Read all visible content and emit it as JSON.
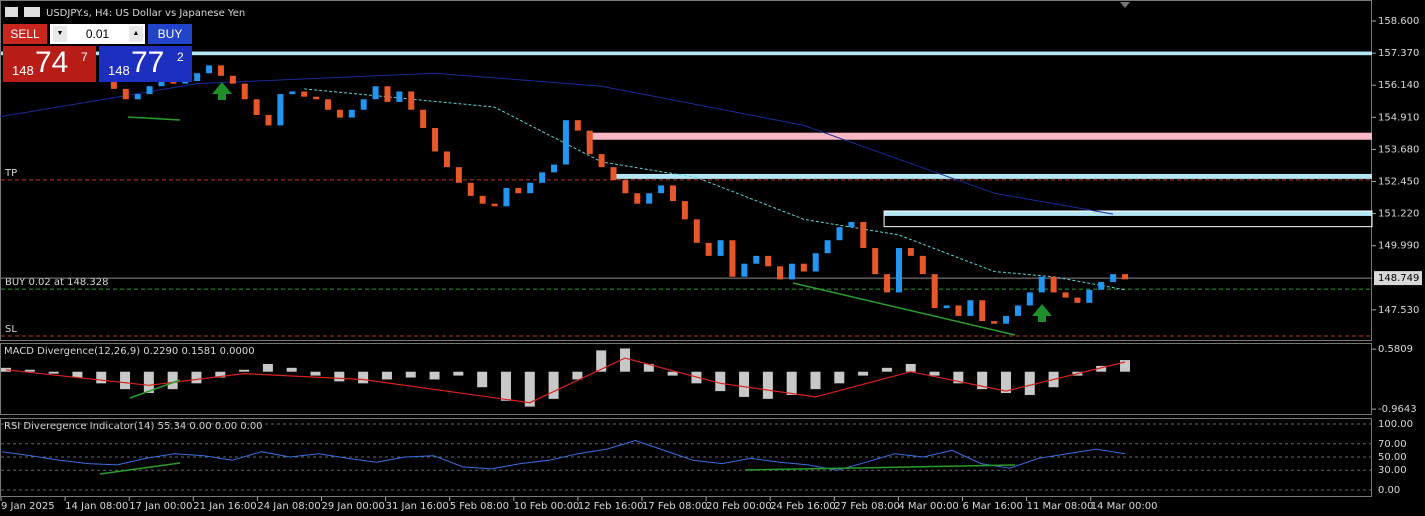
{
  "header": {
    "title": "USDJPY.s, H4:  US Dollar vs Japanese Yen"
  },
  "trade_panel": {
    "sell_label": "SELL",
    "buy_label": "BUY",
    "lot": "0.01",
    "sell_price_head": "148",
    "sell_price_main": "74",
    "sell_price_sup": "7",
    "buy_price_head": "148",
    "buy_price_main": "77",
    "buy_price_sup": "2"
  },
  "main": {
    "ylim": [
      146.338,
      159.405
    ],
    "yticks": [
      {
        "value": 158.6,
        "label": "158.600"
      },
      {
        "value": 157.37,
        "label": "157.370"
      },
      {
        "value": 156.14,
        "label": "156.140"
      },
      {
        "value": 154.91,
        "label": "154.910"
      },
      {
        "value": 153.68,
        "label": "153.680"
      },
      {
        "value": 152.45,
        "label": "152.450"
      },
      {
        "value": 151.22,
        "label": "151.220"
      },
      {
        "value": 149.99,
        "label": "149.990"
      },
      {
        "value": 147.53,
        "label": "147.530"
      }
    ],
    "current_price": {
      "value": 148.749,
      "label": "148.749"
    },
    "up_color": "#2196f3",
    "down_color": "#e8572a",
    "closes": [
      156.3,
      156.0,
      155.6,
      155.8,
      156.1,
      156.4,
      156.2,
      156.3,
      156.6,
      156.9,
      156.5,
      156.2,
      155.6,
      155.0,
      154.6,
      155.8,
      155.9,
      155.7,
      155.6,
      155.2,
      154.9,
      155.2,
      155.6,
      156.1,
      155.5,
      155.9,
      155.2,
      154.5,
      153.6,
      153.0,
      152.4,
      151.9,
      151.6,
      151.5,
      152.2,
      152.0,
      152.4,
      152.8,
      153.1,
      154.8,
      154.4,
      153.5,
      153.0,
      152.5,
      152.0,
      151.6,
      152.0,
      152.3,
      151.7,
      151.0,
      150.1,
      149.6,
      150.2,
      148.8,
      149.3,
      149.6,
      149.2,
      148.7,
      149.3,
      149.0,
      149.7,
      150.2,
      150.7,
      150.9,
      149.9,
      148.9,
      148.2,
      149.9,
      149.6,
      148.9,
      147.6,
      147.7,
      147.3,
      147.9,
      147.1,
      147.0,
      147.3,
      147.7,
      148.2,
      148.8,
      148.2,
      148.0,
      147.8,
      148.3,
      148.6,
      148.9,
      148.7
    ],
    "ma": [
      {
        "color": "#1a2a9a",
        "dashed": false,
        "x": [
          -9,
          8,
          28,
          42,
          59,
          75,
          85
        ],
        "values": [
          154.9,
          156.2,
          156.6,
          156.1,
          154.6,
          152.0,
          151.2
        ]
      },
      {
        "color": "#5fd3d3",
        "dashed": true,
        "x": [
          17,
          33,
          42,
          50,
          59,
          67,
          75,
          80,
          86
        ],
        "values": [
          156.0,
          155.3,
          153.2,
          152.6,
          151.0,
          150.4,
          149.0,
          148.8,
          148.3
        ]
      }
    ],
    "zones": [
      {
        "top": 157.43,
        "bottom": 157.29,
        "color": "#b3e5f2"
      },
      {
        "top": 154.32,
        "bottom": 154.05,
        "color": "#f9b9c4",
        "start": 41
      },
      {
        "top": 152.74,
        "bottom": 152.55,
        "color": "#b3e5f2",
        "start": 43
      },
      {
        "top": 151.32,
        "bottom": 151.13,
        "color": "#b3e5f2",
        "start": 66
      },
      {
        "top": 151.32,
        "bottom": 150.72,
        "color": "none",
        "border": "#ffffff",
        "start": 66
      }
    ],
    "levels": [
      {
        "label": "TP",
        "value": 152.51,
        "color": "#c0392b"
      },
      {
        "label": "BUY 0.02 at 148.328",
        "value": 148.328,
        "color": "#2e9e2e"
      },
      {
        "label": "SL",
        "value": 146.53,
        "color": "#c0392b"
      }
    ],
    "xticks": [
      "9 Jan 2025",
      "14 Jan 08:00",
      "17 Jan 00:00",
      "21 Jan 16:00",
      "24 Jan 08:00",
      "29 Jan 00:00",
      "31 Jan 16:00",
      "5 Feb 08:00",
      "10 Feb 00:00",
      "12 Feb 16:00",
      "17 Feb 08:00",
      "20 Feb 00:00",
      "24 Feb 16:00",
      "27 Feb 08:00",
      "4 Mar 00:00",
      "6 Mar 16:00",
      "11 Mar 08:00",
      "14 Mar 00:00"
    ]
  },
  "macd": {
    "title": "MACD Divergence(12,26,9) 0.2290 0.1581 0.0000",
    "ylim": [
      -1.116,
      0.74
    ],
    "yticks": [
      0.5809,
      -0.9643
    ],
    "hist_color": "#c8c8c8",
    "signal_color": "#d6221e",
    "histogram": [
      0.1,
      0.05,
      -0.05,
      -0.15,
      -0.3,
      -0.45,
      -0.55,
      -0.45,
      -0.3,
      -0.15,
      0.05,
      0.2,
      0.1,
      -0.1,
      -0.25,
      -0.3,
      -0.2,
      -0.15,
      -0.2,
      -0.1,
      -0.4,
      -0.75,
      -0.9,
      -0.7,
      -0.2,
      0.55,
      0.6,
      0.2,
      -0.1,
      -0.3,
      -0.5,
      -0.65,
      -0.7,
      -0.6,
      -0.45,
      -0.3,
      -0.1,
      0.1,
      0.2,
      -0.1,
      -0.3,
      -0.45,
      -0.55,
      -0.6,
      -0.4,
      -0.1,
      0.15,
      0.3
    ],
    "signal": {
      "x": [
        0,
        6,
        10,
        15,
        22,
        26,
        30,
        34,
        38,
        42,
        47
      ],
      "values": [
        0.05,
        -0.35,
        -0.05,
        -0.2,
        -0.8,
        0.35,
        -0.3,
        -0.65,
        0.0,
        -0.5,
        0.25
      ]
    }
  },
  "rsi": {
    "title": "RSI Diveregence Indicator(14) 55.34 0.00 0.00 0.00",
    "ylim": [
      -10.6,
      109.1
    ],
    "yticks": [
      {
        "value": 100,
        "label": "100.00"
      },
      {
        "value": 70,
        "label": "70.00"
      },
      {
        "value": 50,
        "label": "50.00"
      },
      {
        "value": 30,
        "label": "30.00"
      },
      {
        "value": 0,
        "label": "0.00"
      }
    ],
    "color": "#3a6fe0",
    "values": [
      58,
      52,
      45,
      40,
      38,
      48,
      55,
      52,
      45,
      58,
      50,
      55,
      48,
      42,
      50,
      52,
      35,
      32,
      40,
      45,
      55,
      62,
      75,
      60,
      45,
      40,
      48,
      42,
      38,
      30,
      42,
      55,
      50,
      60,
      40,
      33,
      48,
      55,
      62,
      55
    ]
  }
}
